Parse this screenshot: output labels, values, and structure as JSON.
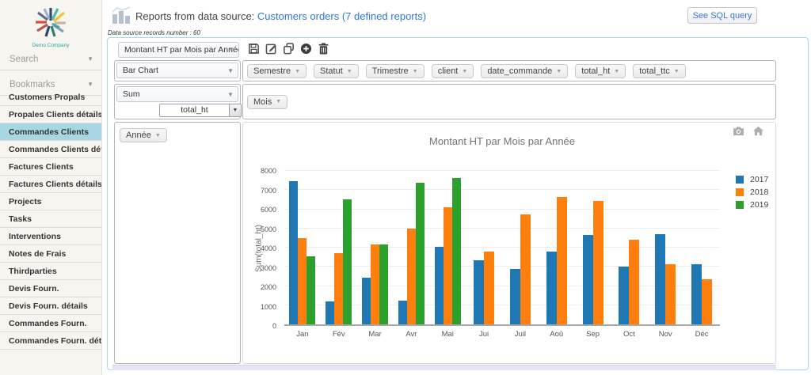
{
  "sidebar": {
    "logo_text": "Demo Company",
    "search_label": "Search",
    "bookmarks_label": "Bookmarks",
    "items": [
      {
        "label": "Customers Propals",
        "active": false
      },
      {
        "label": "Propales Clients détails",
        "active": false
      },
      {
        "label": "Commandes Clients",
        "active": true
      },
      {
        "label": "Commandes Clients détails",
        "active": false
      },
      {
        "label": "Factures Clients",
        "active": false
      },
      {
        "label": "Factures Clients détails",
        "active": false
      },
      {
        "label": "Projects",
        "active": false
      },
      {
        "label": "Tasks",
        "active": false
      },
      {
        "label": "Interventions",
        "active": false
      },
      {
        "label": "Notes de Frais",
        "active": false
      },
      {
        "label": "Thirdparties",
        "active": false
      },
      {
        "label": "Devis Fourn.",
        "active": false
      },
      {
        "label": "Devis Fourn. détails",
        "active": false
      },
      {
        "label": "Commandes Fourn.",
        "active": false
      },
      {
        "label": "Commandes Fourn. détails",
        "active": false
      }
    ]
  },
  "header": {
    "title_prefix": "Reports from data source:",
    "source_link": "Customers orders (7 defined reports)",
    "sql_button_label": "See SQL query",
    "records_note": "Data source records number : 60"
  },
  "report_builder": {
    "report_select_value": "Montant HT par Mois par Année",
    "toolbar_icons": [
      "save-icon",
      "edit-icon",
      "duplicate-icon",
      "add-icon",
      "delete-icon"
    ],
    "chart_type_value": "Bar Chart",
    "aggregate_value": "Sum",
    "aggregate_field_value": "total_ht",
    "column_chips": [
      "Semestre",
      "Statut",
      "Trimestre",
      "client",
      "date_commande",
      "total_ht",
      "total_ttc"
    ],
    "xaxis_chips": [
      "Mois"
    ],
    "series_chips": [
      "Année"
    ]
  },
  "colors": {
    "outer_border": "#a5dbee",
    "sidebar_active": "#a8d7e4",
    "link_blue": "#3178d2",
    "series_2017": "#1f77b4",
    "series_2018": "#ff7f0e",
    "series_2019": "#2ca02c"
  },
  "chart_data": {
    "type": "bar",
    "title": "Montant HT par Mois par Année",
    "xlabel": "",
    "ylabel": "Sum(total_ht)",
    "categories": [
      "Jan",
      "Fév",
      "Mar",
      "Avr",
      "Mai",
      "Jui",
      "Juil",
      "Aoû",
      "Sep",
      "Oct",
      "Nov",
      "Déc"
    ],
    "series": [
      {
        "name": "2017",
        "color": "#1f77b4",
        "values": [
          7450,
          1200,
          2450,
          1250,
          4050,
          3350,
          2900,
          3780,
          4650,
          3000,
          4700,
          3150
        ]
      },
      {
        "name": "2018",
        "color": "#ff7f0e",
        "values": [
          4500,
          3700,
          4150,
          5000,
          6100,
          3800,
          5750,
          6650,
          6450,
          4400,
          3150,
          2350
        ]
      },
      {
        "name": "2019",
        "color": "#2ca02c",
        "values": [
          3550,
          6500,
          4150,
          7400,
          7650,
          null,
          null,
          null,
          null,
          null,
          null,
          null
        ]
      }
    ],
    "ylim": [
      0,
      8000
    ],
    "ytick_step": 1000,
    "grid": true,
    "legend_position": "right",
    "modebar_icons": [
      "camera-icon",
      "home-icon"
    ]
  }
}
